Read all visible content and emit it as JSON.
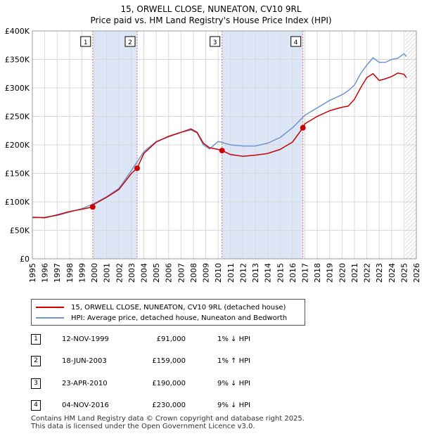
{
  "title_line1": "15, ORWELL CLOSE, NUNEATON, CV10 9RL",
  "title_line2": "Price paid vs. HM Land Registry's House Price Index (HPI)",
  "colors": {
    "price_line": "#cc0000",
    "hpi_line": "#6b96d1",
    "shade": "#dde6f7",
    "vline": "#e07070",
    "grid": "#d9d9d9"
  },
  "legend": {
    "price_label": "15, ORWELL CLOSE, NUNEATON, CV10 9RL (detached house)",
    "hpi_label": "HPI: Average price, detached house, Nuneaton and Bedworth"
  },
  "sales": [
    {
      "num": "1",
      "date": "12-NOV-1999",
      "price": "£91,000",
      "hpi": "1% ↓ HPI"
    },
    {
      "num": "2",
      "date": "18-JUN-2003",
      "price": "£159,000",
      "hpi": "1% ↑ HPI"
    },
    {
      "num": "3",
      "date": "23-APR-2010",
      "price": "£190,000",
      "hpi": "9% ↓ HPI"
    },
    {
      "num": "4",
      "date": "04-NOV-2016",
      "price": "£230,000",
      "hpi": "9% ↓ HPI"
    }
  ],
  "footer_line1": "Contains HM Land Registry data © Crown copyright and database right 2025.",
  "footer_line2": "This data is licensed under the Open Government Licence v3.0.",
  "chart_data": {
    "type": "line",
    "xlim": [
      1995,
      2026
    ],
    "ylim": [
      0,
      400000
    ],
    "x_ticks": [
      "1995",
      "1996",
      "1997",
      "1998",
      "1999",
      "2000",
      "2001",
      "2002",
      "2003",
      "2004",
      "2005",
      "2006",
      "2007",
      "2008",
      "2009",
      "2010",
      "2011",
      "2012",
      "2013",
      "2014",
      "2015",
      "2016",
      "2017",
      "2018",
      "2019",
      "2020",
      "2021",
      "2022",
      "2023",
      "2024",
      "2025",
      "2026"
    ],
    "y_ticks": [
      {
        "value": 0,
        "label": "£0"
      },
      {
        "value": 50000,
        "label": "£50K"
      },
      {
        "value": 100000,
        "label": "£100K"
      },
      {
        "value": 150000,
        "label": "£150K"
      },
      {
        "value": 200000,
        "label": "£200K"
      },
      {
        "value": 250000,
        "label": "£250K"
      },
      {
        "value": 300000,
        "label": "£300K"
      },
      {
        "value": 350000,
        "label": "£350K"
      },
      {
        "value": 400000,
        "label": "£400K"
      }
    ],
    "shaded_ranges": [
      [
        1999.87,
        2003.46
      ],
      [
        2010.31,
        2016.84
      ]
    ],
    "future_hatch_start": 2025.1,
    "sale_markers": [
      {
        "label": "1",
        "x": 1999.87,
        "y": 91000
      },
      {
        "label": "2",
        "x": 2003.46,
        "y": 159000
      },
      {
        "label": "3",
        "x": 2010.31,
        "y": 190000
      },
      {
        "label": "4",
        "x": 2016.84,
        "y": 230000
      }
    ],
    "series": [
      {
        "name": "15, ORWELL CLOSE, NUNEATON, CV10 9RL (detached house)",
        "x": [
          1995,
          1996,
          1997,
          1998,
          1999,
          1999.87,
          2000,
          2001,
          2002,
          2003,
          2003.46,
          2004,
          2005,
          2006,
          2007,
          2007.8,
          2008.3,
          2008.8,
          2009.3,
          2010,
          2010.31,
          2011,
          2012,
          2013,
          2014,
          2015,
          2016,
          2016.84,
          2017,
          2018,
          2019,
          2020,
          2020.5,
          2021,
          2021.5,
          2022,
          2022.5,
          2023,
          2023.5,
          2024,
          2024.5,
          2025,
          2025.2
        ],
        "values": [
          73000,
          72000,
          77000,
          83000,
          87000,
          91000,
          96000,
          108000,
          122000,
          150000,
          159000,
          185000,
          205000,
          215000,
          222000,
          228000,
          222000,
          203000,
          195000,
          192000,
          190000,
          183000,
          180000,
          182000,
          185000,
          192000,
          205000,
          230000,
          237000,
          250000,
          260000,
          266000,
          268000,
          280000,
          300000,
          318000,
          325000,
          313000,
          316000,
          320000,
          326000,
          324000,
          318000
        ]
      },
      {
        "name": "HPI: Average price, detached house, Nuneaton and Bedworth",
        "x": [
          1995,
          1996,
          1997,
          1998,
          1999,
          2000,
          2001,
          2002,
          2003,
          2004,
          2005,
          2006,
          2007,
          2007.8,
          2008.3,
          2008.8,
          2009.3,
          2010,
          2011,
          2012,
          2013,
          2014,
          2015,
          2016,
          2017,
          2018,
          2019,
          2020,
          2020.5,
          2021,
          2021.5,
          2022,
          2022.5,
          2023,
          2023.5,
          2024,
          2024.5,
          2025,
          2025.2
        ],
        "values": [
          72000,
          73000,
          76000,
          82000,
          88000,
          97000,
          109000,
          124000,
          155000,
          188000,
          206000,
          214000,
          222000,
          226000,
          221000,
          200000,
          193000,
          206000,
          200000,
          198000,
          198000,
          203000,
          213000,
          230000,
          252000,
          265000,
          278000,
          288000,
          295000,
          305000,
          325000,
          340000,
          353000,
          345000,
          345000,
          350000,
          352000,
          360000,
          355000
        ]
      }
    ]
  }
}
